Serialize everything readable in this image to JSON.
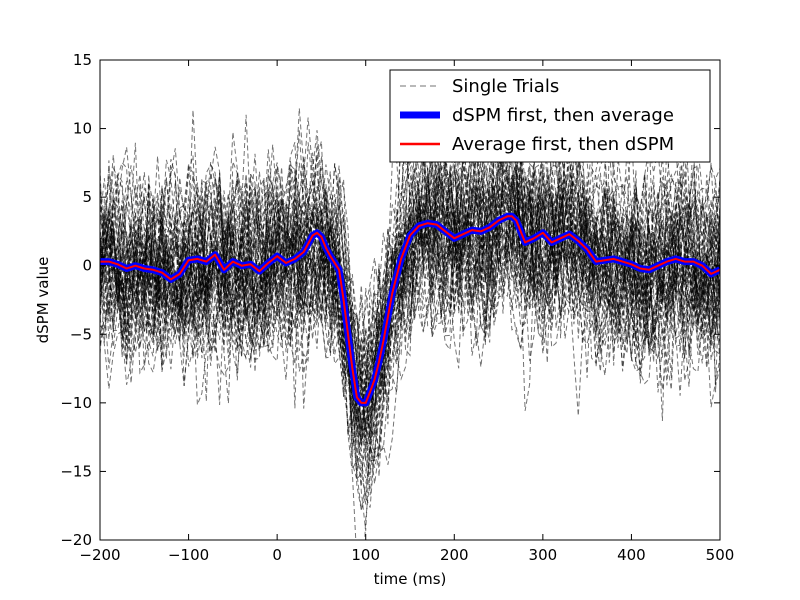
{
  "chart_data": {
    "type": "line",
    "title": "",
    "xlabel": "time (ms)",
    "ylabel": "dSPM value",
    "xlim": [
      -200,
      500
    ],
    "ylim": [
      -20,
      15
    ],
    "x_ticks": [
      -200,
      -100,
      0,
      100,
      200,
      300,
      400,
      500
    ],
    "y_ticks": [
      -20,
      -15,
      -10,
      -5,
      0,
      5,
      10,
      15
    ],
    "grid": false,
    "legend": {
      "placement": "top-right",
      "entries": [
        {
          "label": "Single Trials",
          "color": "#000000",
          "style": "dashed"
        },
        {
          "label": "dSPM first, then average",
          "color": "#0000ff",
          "style": "solid-thick"
        },
        {
          "label": "Average first, then dSPM",
          "color": "#ff0000",
          "style": "solid"
        }
      ]
    },
    "average": {
      "x": [
        -200,
        -190,
        -180,
        -170,
        -160,
        -150,
        -140,
        -130,
        -120,
        -110,
        -100,
        -90,
        -80,
        -70,
        -60,
        -50,
        -40,
        -30,
        -20,
        -10,
        0,
        10,
        20,
        30,
        40,
        45,
        50,
        55,
        60,
        70,
        75,
        80,
        85,
        90,
        95,
        100,
        105,
        110,
        115,
        120,
        130,
        140,
        150,
        160,
        170,
        180,
        190,
        200,
        210,
        220,
        230,
        240,
        250,
        260,
        265,
        270,
        280,
        290,
        300,
        310,
        320,
        330,
        340,
        350,
        360,
        370,
        380,
        390,
        400,
        410,
        420,
        430,
        440,
        450,
        460,
        470,
        480,
        490,
        500
      ],
      "y": [
        0.3,
        0.3,
        0.1,
        -0.2,
        0.0,
        -0.2,
        -0.3,
        -0.5,
        -1.0,
        -0.6,
        0.4,
        0.5,
        0.3,
        0.8,
        -0.3,
        0.3,
        0.0,
        0.1,
        -0.4,
        0.2,
        0.7,
        0.2,
        0.5,
        1.0,
        2.2,
        2.4,
        2.1,
        1.3,
        0.7,
        -0.3,
        -2.5,
        -5.0,
        -7.5,
        -9.6,
        -10.0,
        -10.0,
        -9.2,
        -8.3,
        -7.0,
        -5.5,
        -2.0,
        0.5,
        2.2,
        2.9,
        3.1,
        3.0,
        2.5,
        2.0,
        2.3,
        2.6,
        2.5,
        2.8,
        3.3,
        3.6,
        3.6,
        3.3,
        1.7,
        2.0,
        2.4,
        1.7,
        2.0,
        2.3,
        1.8,
        1.2,
        0.3,
        0.4,
        0.5,
        0.3,
        0.1,
        -0.2,
        -0.3,
        0.0,
        0.3,
        0.5,
        0.3,
        0.3,
        0.0,
        -0.6,
        -0.3
      ]
    },
    "single_trials": {
      "count": 55,
      "spread": 4.0
    }
  }
}
